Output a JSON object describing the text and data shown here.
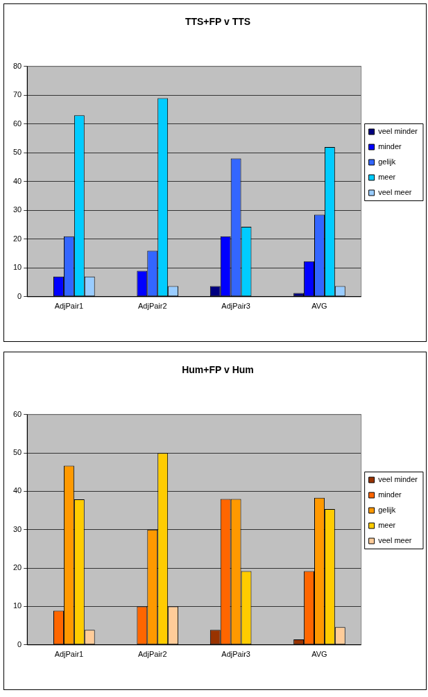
{
  "chart_data": [
    {
      "type": "bar",
      "title": "TTS+FP v TTS",
      "categories": [
        "AdjPair1",
        "AdjPair2",
        "AdjPair3",
        "AVG"
      ],
      "series": [
        {
          "name": "veel minder",
          "color": "#000080",
          "values": [
            0,
            0,
            3.7,
            1.3
          ]
        },
        {
          "name": "minder",
          "color": "#0000ff",
          "values": [
            7,
            9,
            21,
            12.3
          ]
        },
        {
          "name": "gelijk",
          "color": "#3366ff",
          "values": [
            21,
            16,
            48,
            28.5
          ]
        },
        {
          "name": "meer",
          "color": "#00ccff",
          "values": [
            63,
            69,
            24.3,
            52
          ]
        },
        {
          "name": "veel meer",
          "color": "#99ccff",
          "values": [
            7,
            3.7,
            0,
            3.7
          ]
        }
      ],
      "ylim": [
        0,
        80
      ],
      "yticks": [
        0,
        10,
        20,
        30,
        40,
        50,
        60,
        70,
        80
      ],
      "grid": "y",
      "legend": "right"
    },
    {
      "type": "bar",
      "title": "Hum+FP v Hum",
      "categories": [
        "AdjPair1",
        "AdjPair2",
        "AdjPair3",
        "AVG"
      ],
      "series": [
        {
          "name": "veel minder",
          "color": "#993300",
          "values": [
            0,
            0,
            3.9,
            1.4
          ]
        },
        {
          "name": "minder",
          "color": "#ff6600",
          "values": [
            8.9,
            10,
            38,
            19.2
          ]
        },
        {
          "name": "gelijk",
          "color": "#ff9900",
          "values": [
            46.7,
            30,
            38,
            38.3
          ]
        },
        {
          "name": "meer",
          "color": "#ffcc00",
          "values": [
            37.9,
            50,
            19.2,
            35.4
          ]
        },
        {
          "name": "veel meer",
          "color": "#ffcc99",
          "values": [
            3.9,
            10,
            0,
            4.6
          ]
        }
      ],
      "ylim": [
        0,
        60
      ],
      "yticks": [
        0,
        10,
        20,
        30,
        40,
        50,
        60
      ],
      "grid": "y",
      "legend": "right"
    }
  ]
}
